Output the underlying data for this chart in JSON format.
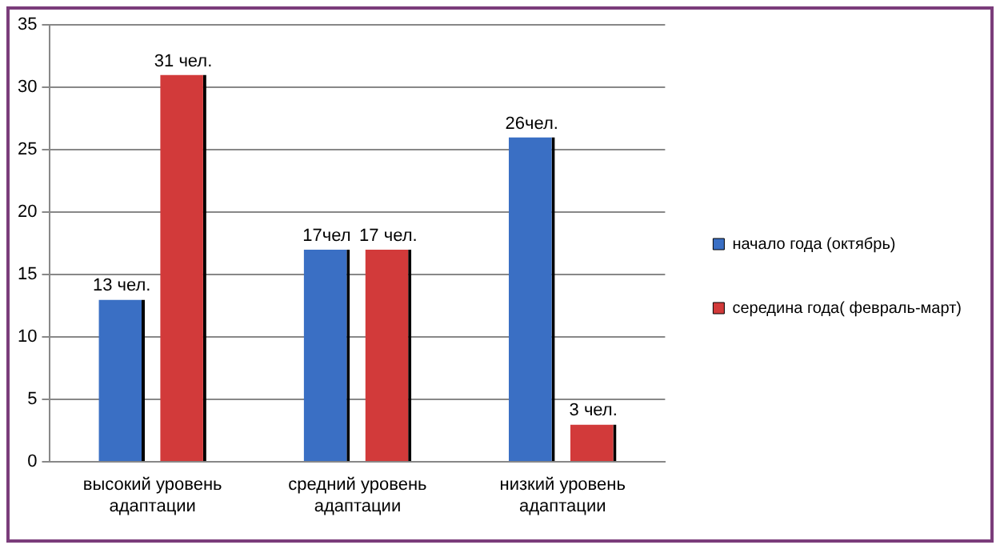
{
  "chart_data": {
    "type": "bar",
    "categories": [
      "высокий уровень адаптации",
      "средний уровень адаптации",
      "низкий уровень адаптации"
    ],
    "series": [
      {
        "name": "начало года (октябрь)",
        "color": "#3a6fc4",
        "values": [
          13,
          17,
          26
        ],
        "value_labels": [
          "13 чел.",
          "17чел",
          "26чел."
        ]
      },
      {
        "name": "середина года( февраль-март)",
        "color": "#d23a3a",
        "values": [
          31,
          17,
          3
        ],
        "value_labels": [
          "31 чел.",
          "17 чел.",
          "3 чел."
        ]
      }
    ],
    "ylim": [
      0,
      35
    ],
    "yticks": [
      0,
      5,
      10,
      15,
      20,
      25,
      30,
      35
    ],
    "grid": "y",
    "legend": "right"
  }
}
